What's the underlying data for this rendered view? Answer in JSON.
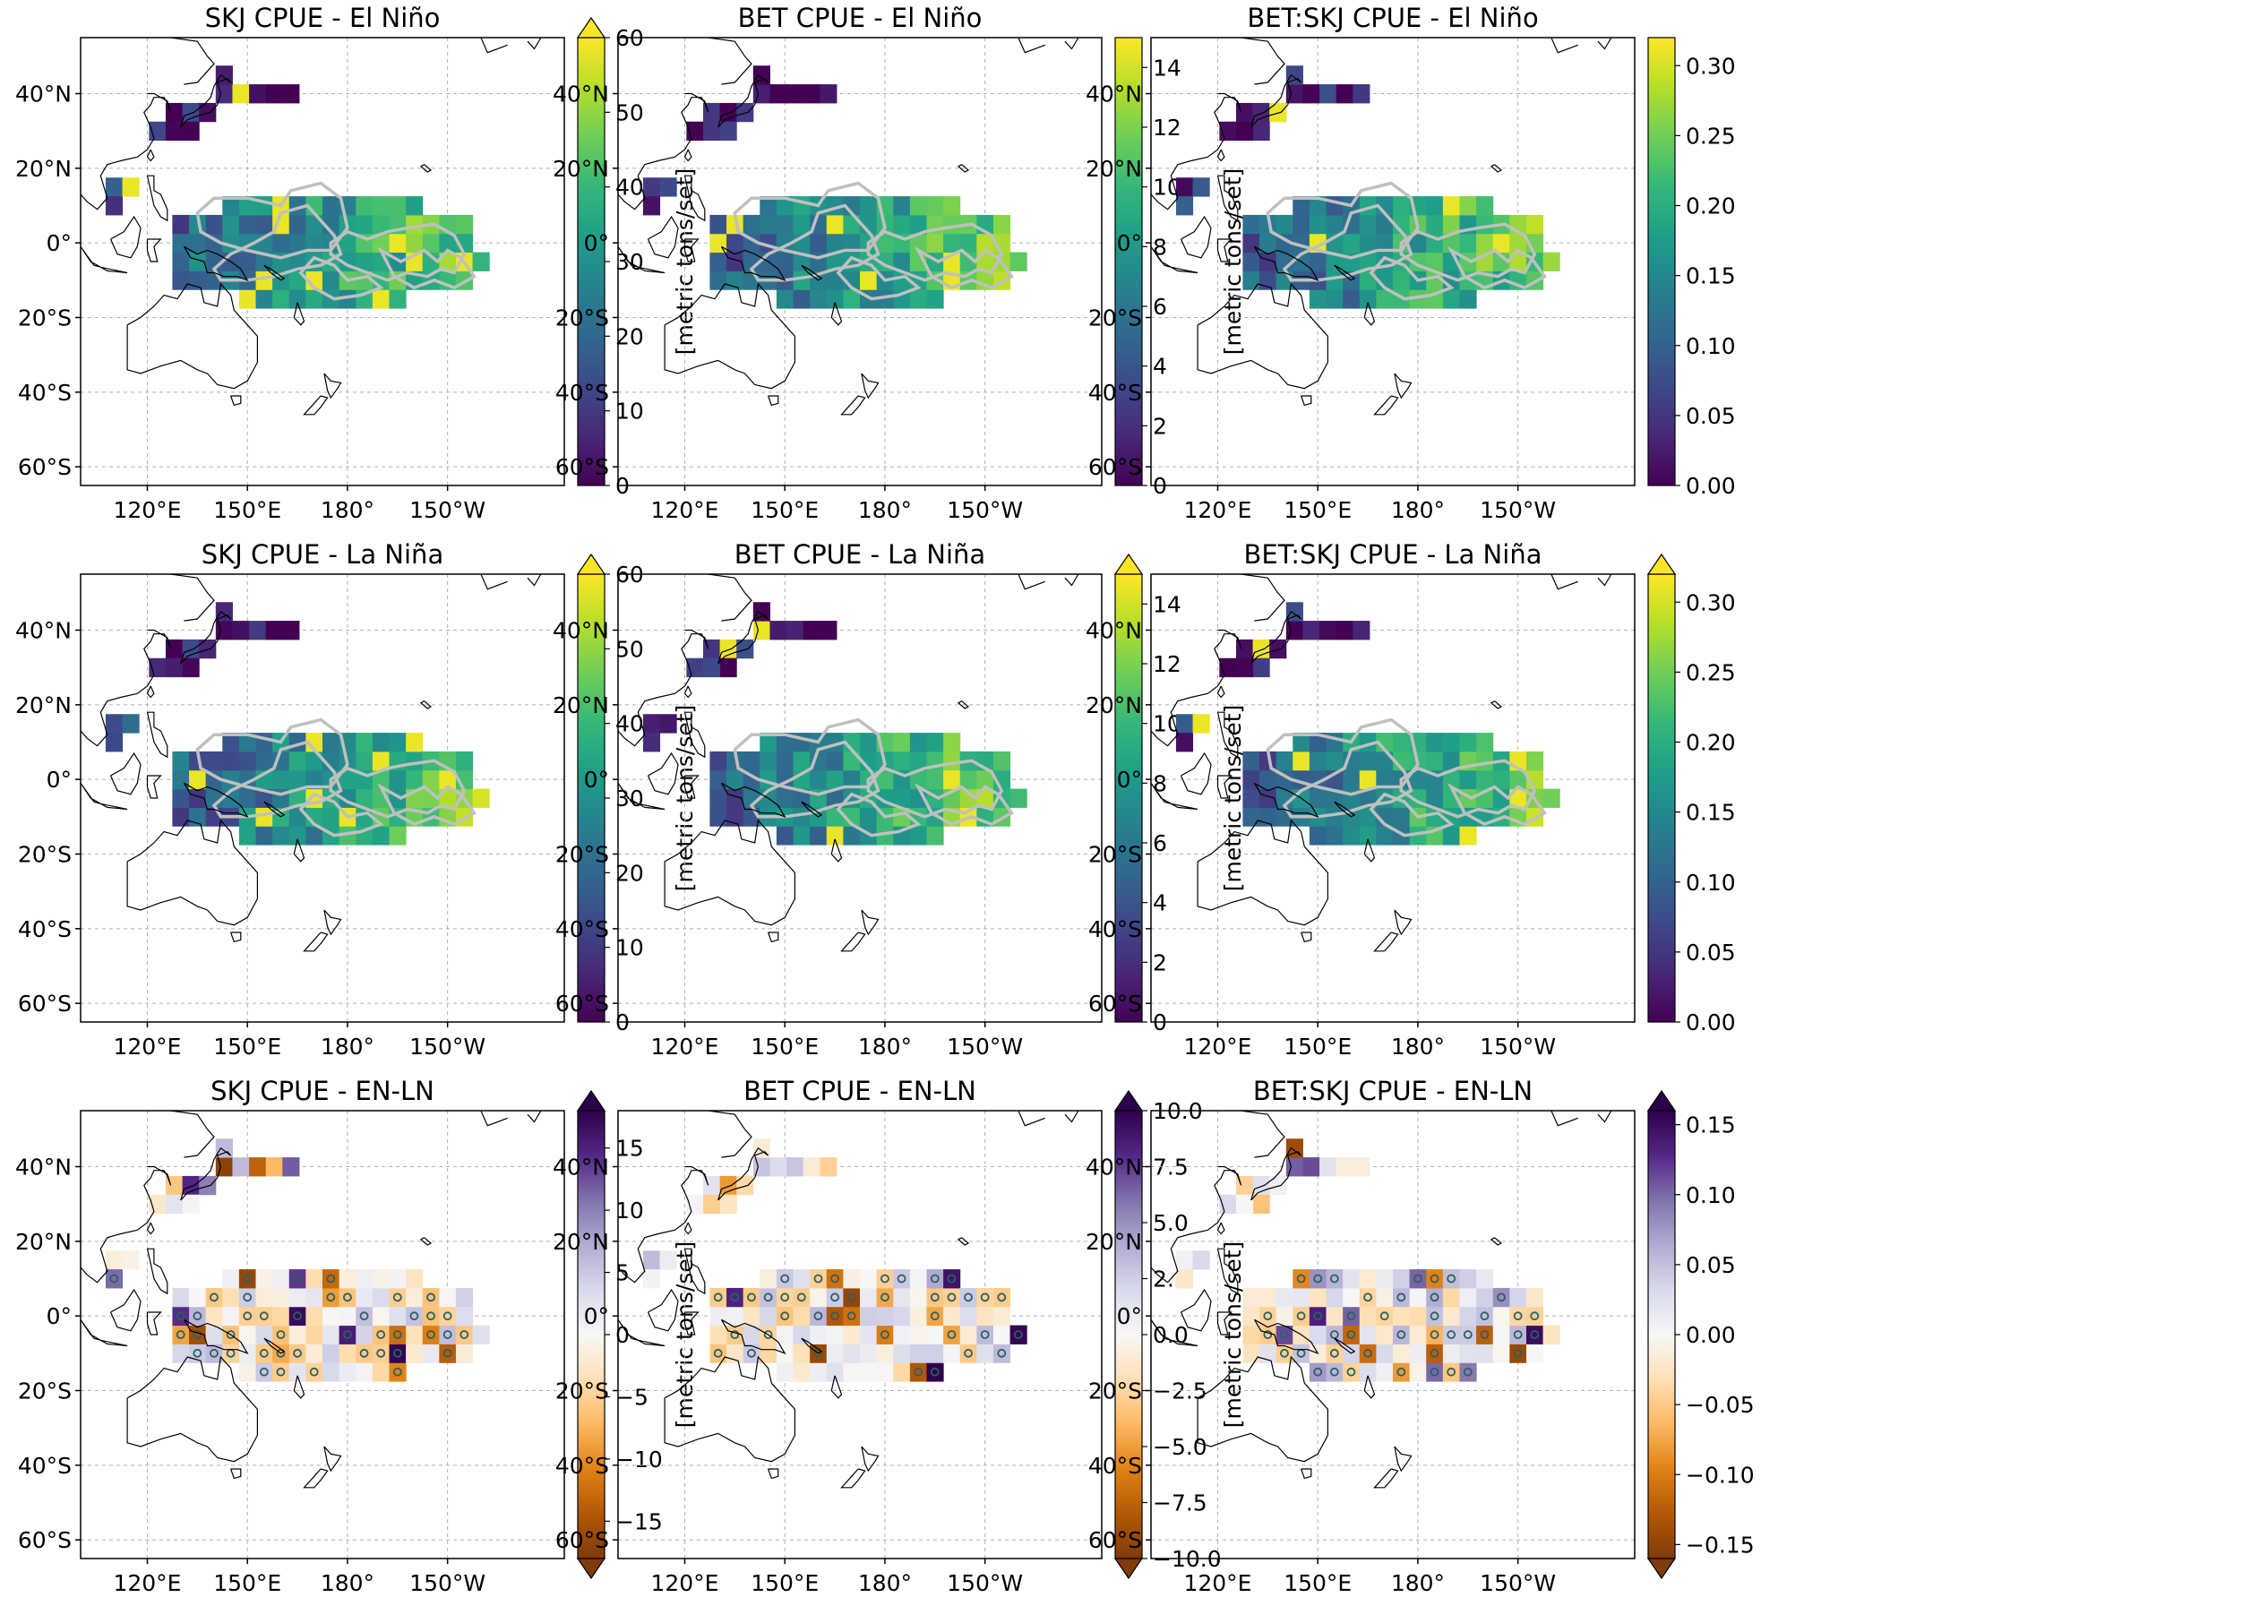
{
  "panels": [
    {
      "title": "SKJ CPUE - El Niño",
      "cmap": "viridis",
      "ticks": [
        "0",
        "10",
        "20",
        "30",
        "40",
        "50",
        "60"
      ],
      "vmin": 0,
      "vmax": 60,
      "extend": "max",
      "label": "[metric tons/set]"
    },
    {
      "title": "BET CPUE - El Niño",
      "cmap": "viridis",
      "ticks": [
        "0",
        "2",
        "4",
        "6",
        "8",
        "10",
        "12",
        "14"
      ],
      "vmin": 0,
      "vmax": 15,
      "extend": "none",
      "label": "[metric tons/set]"
    },
    {
      "title": "BET:SKJ CPUE - El Niño",
      "cmap": "viridis",
      "ticks": [
        "0.00",
        "0.05",
        "0.10",
        "0.15",
        "0.20",
        "0.25",
        "0.30"
      ],
      "vmin": 0,
      "vmax": 0.32,
      "extend": "none",
      "label": ""
    },
    {
      "title": "SKJ CPUE - La Niña",
      "cmap": "viridis",
      "ticks": [
        "0",
        "10",
        "20",
        "30",
        "40",
        "50",
        "60"
      ],
      "vmin": 0,
      "vmax": 60,
      "extend": "max",
      "label": "[metric tons/set]"
    },
    {
      "title": "BET CPUE - La Niña",
      "cmap": "viridis",
      "ticks": [
        "0",
        "2",
        "4",
        "6",
        "8",
        "10",
        "12",
        "14"
      ],
      "vmin": 0,
      "vmax": 15,
      "extend": "max",
      "label": "[metric tons/set]"
    },
    {
      "title": "BET:SKJ CPUE - La Niña",
      "cmap": "viridis",
      "ticks": [
        "0.00",
        "0.05",
        "0.10",
        "0.15",
        "0.20",
        "0.25",
        "0.30"
      ],
      "vmin": 0,
      "vmax": 0.32,
      "extend": "max",
      "label": ""
    },
    {
      "title": "SKJ CPUE - EN-LN",
      "cmap": "puor",
      "ticks": [
        "−15",
        "−10",
        "−5",
        "0",
        "5",
        "10",
        "15"
      ],
      "vmin": -18,
      "vmax": 18,
      "extend": "both",
      "label": "[metric tons/set]"
    },
    {
      "title": "BET CPUE - EN-LN",
      "cmap": "puor",
      "ticks": [
        "−10.0",
        "−7.5",
        "−5.0",
        "−2.5",
        "0.0",
        "2.5",
        "5.0",
        "7.5",
        "10.0"
      ],
      "vmin": -10,
      "vmax": 10,
      "extend": "both",
      "label": "[metric tons/set]"
    },
    {
      "title": "BET:SKJ CPUE - EN-LN",
      "cmap": "puor",
      "ticks": [
        "−0.15",
        "−0.10",
        "−0.05",
        "0.00",
        "0.05",
        "0.10",
        "0.15"
      ],
      "vmin": -0.16,
      "vmax": 0.16,
      "extend": "both",
      "label": ""
    }
  ],
  "map_axes": {
    "lat_ticks": [
      "40°N",
      "20°N",
      "0°",
      "20°S",
      "40°S",
      "60°S"
    ],
    "lon_ticks": [
      "120°E",
      "150°E",
      "180°",
      "150°W"
    ]
  },
  "colors": {
    "viridis": [
      "#440154",
      "#482878",
      "#3e4989",
      "#31688e",
      "#26828e",
      "#1f9e89",
      "#35b779",
      "#6ece58",
      "#b5de2b",
      "#fde725"
    ],
    "puor": [
      "#7f3b08",
      "#b35806",
      "#e08214",
      "#fdb863",
      "#fee0b6",
      "#f7f7f7",
      "#d8daeb",
      "#b2abd2",
      "#8073ac",
      "#542788",
      "#2d004b"
    ],
    "eez_outline": "#c0c0c0",
    "coast": "#000000",
    "grid": "#b0b0b0"
  }
}
